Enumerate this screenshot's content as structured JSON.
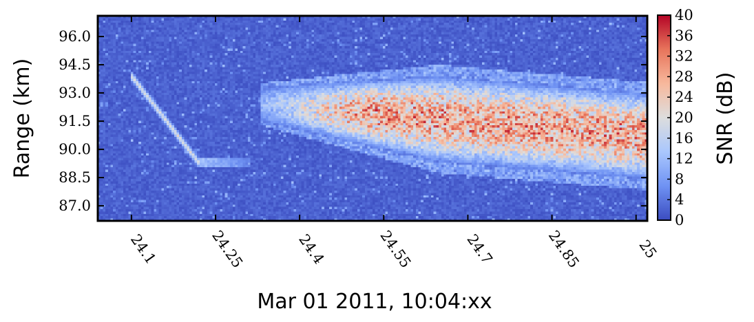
{
  "chart_data": {
    "type": "heatmap",
    "title": "",
    "xlabel": "Mar 01 2011, 10:04:xx",
    "ylabel": "Range (km)",
    "colorbar_label": "SNR (dB)",
    "xlim": [
      24.04,
      25.02
    ],
    "ylim": [
      86.2,
      97.1
    ],
    "x_ticks": [
      24.1,
      24.25,
      24.4,
      24.55,
      24.7,
      24.85,
      25
    ],
    "x_tick_labels": [
      "24.1",
      "24.25",
      "24.4",
      "24.55",
      "24.7",
      "24.85",
      "25"
    ],
    "y_ticks": [
      87.0,
      88.5,
      90.0,
      91.5,
      93.0,
      94.5,
      96.0
    ],
    "y_tick_labels": [
      "87.0",
      "88.5",
      "90.0",
      "91.5",
      "93.0",
      "94.5",
      "96.0"
    ],
    "colorbar_range": [
      0,
      40
    ],
    "colorbar_ticks": [
      0,
      4,
      8,
      12,
      16,
      20,
      24,
      28,
      32,
      36,
      40
    ],
    "colorbar_tick_labels": [
      "0",
      "4",
      "8",
      "12",
      "16",
      "20",
      "24",
      "28",
      "32",
      "36",
      "40"
    ],
    "colormap": "coolwarm",
    "colormap_stops": [
      "#3b4cc0",
      "#6f92f3",
      "#aac7fd",
      "#dddddd",
      "#f7b89c",
      "#e7745b",
      "#b40426"
    ],
    "background_snr_db": 2,
    "features": {
      "meteor_head_trail": {
        "start": {
          "x": 24.1,
          "range_km": 93.9
        },
        "end": {
          "x": 24.22,
          "range_km": 89.3
        },
        "snr_db": 20
      },
      "short_horizontal_trail": {
        "range_km": 89.3,
        "x_start": 24.22,
        "x_end": 24.31,
        "snr_db": 15
      },
      "non_specular_echo": {
        "x_start": 24.33,
        "x_end": 25.02,
        "center_range_km_at_start": 92.4,
        "center_range_km_at_end": 90.7,
        "peak_snr_db": 28
      }
    }
  }
}
